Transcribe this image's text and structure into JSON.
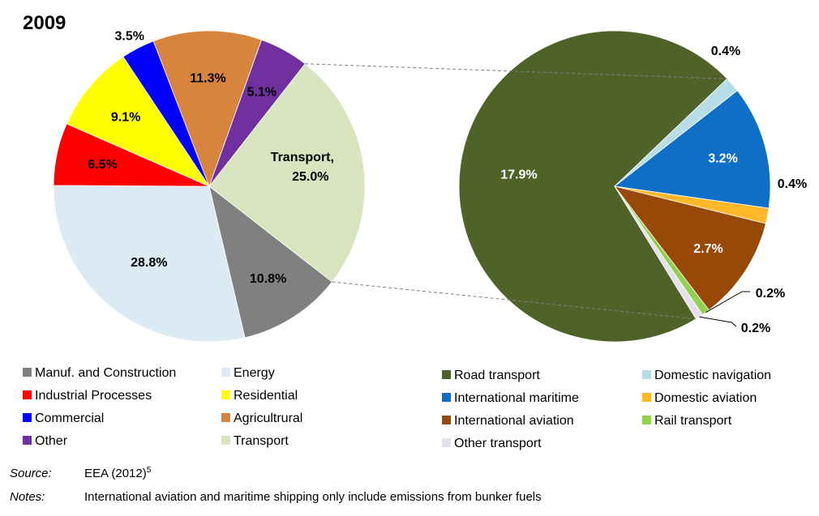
{
  "year": "2009",
  "colors": {
    "Manuf. and Construction": "#808080",
    "Energy": "#dbeaf3",
    "Industrial Processes": "#ff0000",
    "Residential": "#ffff00",
    "Commercial": "#0000ff",
    "Agricultrural": "#d7843f",
    "Other": "#7030a0",
    "Transport": "#d7e4bd",
    "Road transport": "#4f6228",
    "Domestic navigation": "#b7dde8",
    "International maritime": "#0f6fc6",
    "Domestic aviation": "#ffb828",
    "International aviation": "#984807",
    "Rail transport": "#92d050",
    "Other transport": "#e6e0ec"
  },
  "chart_data": [
    {
      "type": "pie",
      "title": "2009",
      "slices": [
        {
          "name": "Transport",
          "value": 25.0,
          "label": "Transport, 25.0%"
        },
        {
          "name": "Manuf. and Construction",
          "value": 10.8,
          "label": "10.8%"
        },
        {
          "name": "Energy",
          "value": 28.8,
          "label": "28.8%"
        },
        {
          "name": "Industrial Processes",
          "value": 6.5,
          "label": "6.5%"
        },
        {
          "name": "Residential",
          "value": 9.1,
          "label": "9.1%"
        },
        {
          "name": "Commercial",
          "value": 3.5,
          "label": "3.5%"
        },
        {
          "name": "Agricultrural",
          "value": 11.3,
          "label": "11.3%"
        },
        {
          "name": "Other",
          "value": 5.1,
          "label": "5.1%"
        }
      ]
    },
    {
      "type": "pie",
      "slices": [
        {
          "name": "Road transport",
          "value": 17.9,
          "label": "17.9%"
        },
        {
          "name": "Domestic navigation",
          "value": 0.4,
          "label": "0.4%"
        },
        {
          "name": "International maritime",
          "value": 3.2,
          "label": "3.2%"
        },
        {
          "name": "Domestic aviation",
          "value": 0.4,
          "label": "0.4%"
        },
        {
          "name": "International aviation",
          "value": 2.7,
          "label": "2.7%"
        },
        {
          "name": "Rail transport",
          "value": 0.2,
          "label": "0.2%"
        },
        {
          "name": "Other transport",
          "value": 0.2,
          "label": "0.2%"
        }
      ]
    }
  ],
  "legend_left": [
    "Manuf. and Construction",
    "Energy",
    "Industrial Processes",
    "Residential",
    "Commercial",
    "Agricultrural",
    "Other",
    "Transport"
  ],
  "legend_right": [
    "Road transport",
    "Domestic navigation",
    "International maritime",
    "Domestic aviation",
    "International aviation",
    "Rail transport",
    "Other transport"
  ],
  "source_key": "Source:",
  "source_text": "EEA (2012)",
  "source_sup": "5",
  "notes_key": "Notes:",
  "notes_text": "International aviation and maritime shipping only include emissions from bunker fuels"
}
